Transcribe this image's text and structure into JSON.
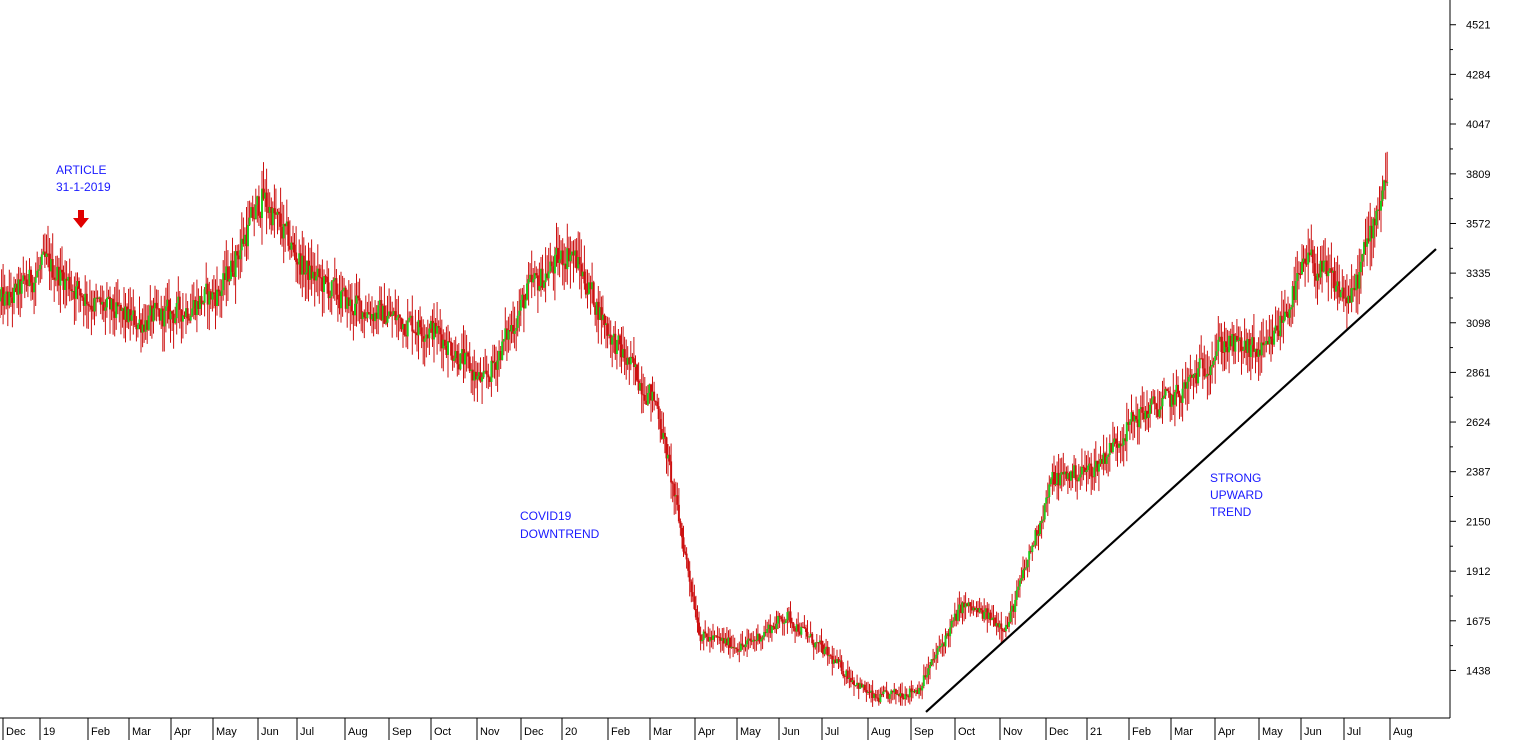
{
  "chart_data": {
    "type": "candlestick",
    "colors": {
      "up": "#1fcc1f",
      "down": "#cc1010",
      "annotation": "#1a1aff",
      "arrow": "#e00000",
      "trendline": "#000000",
      "axis": "#000000"
    },
    "y_axis": {
      "position": "right",
      "ylim": [
        1230,
        4620
      ],
      "ticks": [
        1438,
        1675,
        1912,
        2150,
        2387,
        2624,
        2861,
        3098,
        3335,
        3572,
        3809,
        4047,
        4284,
        4521
      ]
    },
    "x_axis": {
      "position": "bottom",
      "labels": [
        "Dec",
        "19",
        "Feb",
        "Mar",
        "Apr",
        "May",
        "Jun",
        "Jul",
        "Aug",
        "Sep",
        "Oct",
        "Nov",
        "Dec",
        "20",
        "Feb",
        "Mar",
        "Apr",
        "May",
        "Jun",
        "Jul",
        "Aug",
        "Sep",
        "Oct",
        "Nov",
        "Dec",
        "21",
        "Feb",
        "Mar",
        "Apr",
        "May",
        "Jun",
        "Jul",
        "Aug"
      ]
    },
    "price_path": [
      {
        "month": "Dec 2018",
        "close": 3200
      },
      {
        "month": "Jan 2019",
        "close": 3380
      },
      {
        "month": "Feb 2019",
        "close": 3180
      },
      {
        "month": "Mar 2019",
        "close": 3100
      },
      {
        "month": "Apr 2019",
        "close": 3150
      },
      {
        "month": "May 2019",
        "close": 3250
      },
      {
        "month": "Jun 2019",
        "close": 3700
      },
      {
        "month": "Jul 2019",
        "close": 3350
      },
      {
        "month": "Aug 2019",
        "close": 3180
      },
      {
        "month": "Sep 2019",
        "close": 3120
      },
      {
        "month": "Oct 2019",
        "close": 3050
      },
      {
        "month": "Nov 2019",
        "close": 2800
      },
      {
        "month": "Dec 2019",
        "close": 3250
      },
      {
        "month": "Jan 2020",
        "close": 3450
      },
      {
        "month": "Feb 2020",
        "close": 3000
      },
      {
        "month": "Mar 2020",
        "close": 2700
      },
      {
        "month": "Apr 2020",
        "close": 1600
      },
      {
        "month": "May 2020",
        "close": 1550
      },
      {
        "month": "Jun 2020",
        "close": 1700
      },
      {
        "month": "Jul 2020",
        "close": 1500
      },
      {
        "month": "Aug 2020",
        "close": 1300
      },
      {
        "month": "Sep 2020",
        "close": 1350
      },
      {
        "month": "Oct 2020",
        "close": 1750
      },
      {
        "month": "Nov 2020",
        "close": 1650
      },
      {
        "month": "Dec 2020",
        "close": 2350
      },
      {
        "month": "Jan 2021",
        "close": 2400
      },
      {
        "month": "Feb 2021",
        "close": 2650
      },
      {
        "month": "Mar 2021",
        "close": 2750
      },
      {
        "month": "Apr 2021",
        "close": 3000
      },
      {
        "month": "May 2021",
        "close": 2950
      },
      {
        "month": "Jun 2021",
        "close": 3400
      },
      {
        "month": "Jul 2021",
        "close": 3200
      },
      {
        "month": "Aug 2021",
        "close": 3850
      }
    ],
    "trendline": {
      "from": {
        "month": "Sep 2020",
        "value": 1240
      },
      "to": {
        "month": "Aug 2021",
        "value": 3450
      }
    },
    "annotations": [
      {
        "id": "article",
        "lines": [
          "ARTICLE",
          "31-1-2019"
        ]
      },
      {
        "id": "covid",
        "lines": [
          "COVID19",
          "DOWNTREND"
        ]
      },
      {
        "id": "trend",
        "lines": [
          "STRONG",
          "UPWARD",
          "TREND"
        ]
      }
    ]
  }
}
